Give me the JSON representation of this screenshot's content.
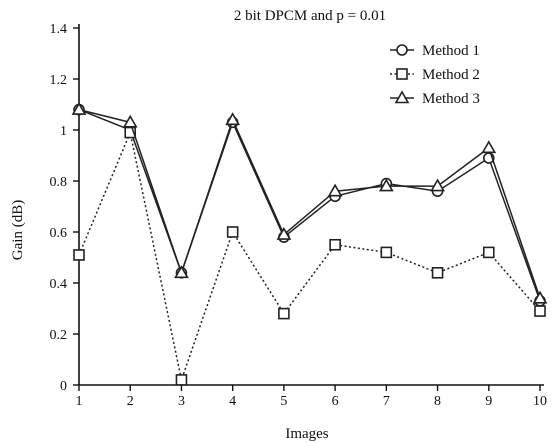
{
  "chart_data": {
    "type": "line",
    "title": "2 bit DPCM and p = 0.01",
    "xlabel": "Images",
    "ylabel": "Gain (dB)",
    "x": [
      1,
      2,
      3,
      4,
      5,
      6,
      7,
      8,
      9,
      10
    ],
    "xlim": [
      1,
      10
    ],
    "ylim": [
      0,
      1.4
    ],
    "x_ticks": [
      "1",
      "2",
      "3",
      "4",
      "5",
      "6",
      "7",
      "8",
      "9",
      "10"
    ],
    "y_ticks": [
      "0",
      "0.2",
      "0.4",
      "0.6",
      "0.8",
      "1",
      "1.2",
      "1.4"
    ],
    "grid": false,
    "legend_position": "top-right",
    "series": [
      {
        "name": "Method 1",
        "marker": "circle",
        "line_style": "solid",
        "values": [
          1.08,
          1.0,
          0.44,
          1.03,
          0.58,
          0.74,
          0.79,
          0.76,
          0.89,
          0.33
        ]
      },
      {
        "name": "Method 2",
        "marker": "square",
        "line_style": "dotted",
        "values": [
          0.51,
          0.99,
          0.02,
          0.6,
          0.28,
          0.55,
          0.52,
          0.44,
          0.52,
          0.29
        ]
      },
      {
        "name": "Method 3",
        "marker": "triangle",
        "line_style": "solid",
        "values": [
          1.08,
          1.03,
          0.44,
          1.04,
          0.59,
          0.76,
          0.78,
          0.78,
          0.93,
          0.34
        ]
      }
    ]
  }
}
